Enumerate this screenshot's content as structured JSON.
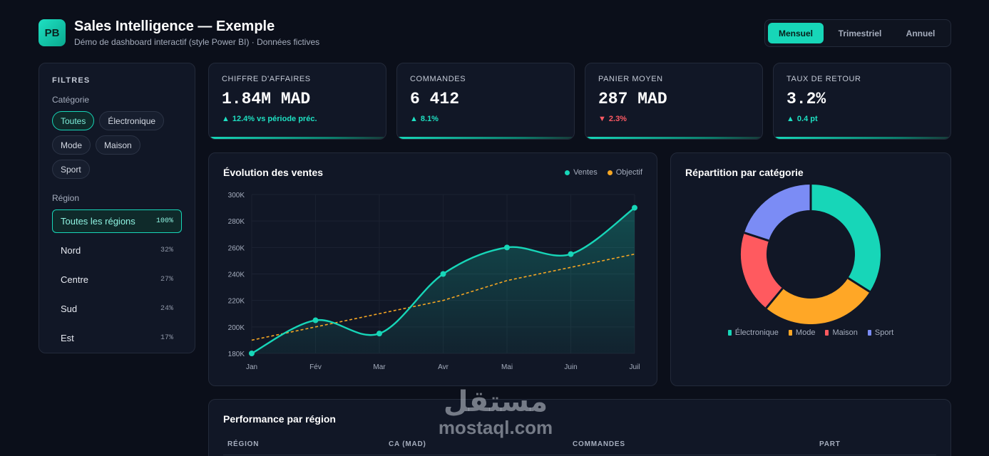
{
  "header": {
    "logo_text": "PB",
    "title": "Sales Intelligence — Exemple",
    "subtitle": "Démo de dashboard interactif (style Power BI) · Données fictives",
    "periods": [
      "Mensuel",
      "Trimestriel",
      "Annuel"
    ],
    "active_period": "Mensuel"
  },
  "filters": {
    "title": "FILTRES",
    "category_label": "Catégorie",
    "categories": [
      "Toutes",
      "Électronique",
      "Mode",
      "Maison",
      "Sport"
    ],
    "active_category": "Toutes",
    "region_label": "Région",
    "regions": [
      {
        "name": "Toutes les régions",
        "pct": "100%"
      },
      {
        "name": "Nord",
        "pct": "32%"
      },
      {
        "name": "Centre",
        "pct": "27%"
      },
      {
        "name": "Sud",
        "pct": "24%"
      },
      {
        "name": "Est",
        "pct": "17%"
      }
    ],
    "active_region": "Toutes les régions"
  },
  "kpis": [
    {
      "label": "CHIFFRE D'AFFAIRES",
      "value": "1.84M MAD",
      "delta": "12.4% vs période préc.",
      "direction": "up"
    },
    {
      "label": "COMMANDES",
      "value": "6 412",
      "delta": "8.1%",
      "direction": "up"
    },
    {
      "label": "PANIER MOYEN",
      "value": "287 MAD",
      "delta": "2.3%",
      "direction": "down"
    },
    {
      "label": "TAUX DE RETOUR",
      "value": "3.2%",
      "delta": "0.4 pt",
      "direction": "up"
    }
  ],
  "sales_chart": {
    "title": "Évolution des ventes",
    "legend": [
      "Ventes",
      "Objectif"
    ]
  },
  "donut_chart": {
    "title": "Répartition par catégorie"
  },
  "table": {
    "title": "Performance par région",
    "columns": [
      "RÉGION",
      "CA (MAD)",
      "COMMANDES",
      "PART"
    ]
  },
  "watermark": {
    "arabic": "مستقل",
    "latin": "mostaql.com"
  },
  "colors": {
    "accent": "#17d6b8",
    "objective": "#f5a623",
    "mode": "#ffa726",
    "maison": "#ff5a5f",
    "sport": "#7b8cf5",
    "negative": "#ff5a64"
  },
  "chart_data": [
    {
      "type": "line",
      "x": [
        "Jan",
        "Fév",
        "Mar",
        "Avr",
        "Mai",
        "Juin",
        "Juil"
      ],
      "series": [
        {
          "name": "Ventes",
          "values": [
            180000,
            205000,
            195000,
            240000,
            260000,
            255000,
            290000
          ]
        },
        {
          "name": "Objectif",
          "values": [
            190000,
            200000,
            210000,
            220000,
            235000,
            245000,
            255000
          ]
        }
      ],
      "y_ticks": [
        "180K",
        "200K",
        "220K",
        "240K",
        "260K",
        "280K",
        "300K"
      ],
      "ylim": [
        180000,
        300000
      ],
      "grid": true,
      "legend_position": "top-right"
    },
    {
      "type": "pie",
      "categories": [
        "Électronique",
        "Mode",
        "Maison",
        "Sport"
      ],
      "values": [
        34,
        27,
        19,
        20
      ],
      "legend_position": "bottom"
    }
  ]
}
